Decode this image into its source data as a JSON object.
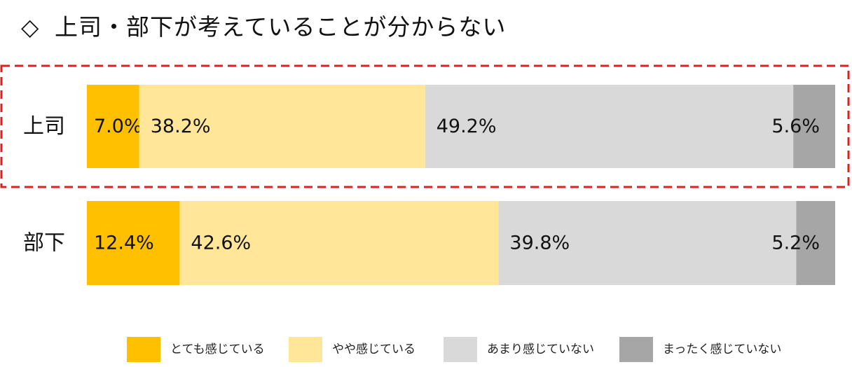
{
  "title": "上司・部下が考えていることが分からない",
  "title_marker": "◇",
  "colors": {
    "very": "#FFC000",
    "somewhat": "#FFE699",
    "little": "#D9D9D9",
    "none": "#A6A6A6",
    "highlight": "#E02020"
  },
  "chart_data": {
    "type": "bar",
    "orientation": "horizontal",
    "stacked": "100%",
    "categories": [
      "上司",
      "部下"
    ],
    "series": [
      {
        "name": "とても感じている",
        "values": [
          7.0,
          12.4
        ],
        "labels": [
          "7.0%",
          "12.4%"
        ],
        "color": "#FFC000"
      },
      {
        "name": "やや感じている",
        "values": [
          38.2,
          42.6
        ],
        "labels": [
          "38.2%",
          "42.6%"
        ],
        "color": "#FFE699"
      },
      {
        "name": "あまり感じていない",
        "values": [
          49.2,
          39.8
        ],
        "labels": [
          "49.2%",
          "39.8%"
        ],
        "color": "#D9D9D9"
      },
      {
        "name": "まったく感じていない",
        "values": [
          5.6,
          5.2
        ],
        "labels": [
          "5.6%",
          "5.2%"
        ],
        "color": "#A6A6A6"
      }
    ],
    "highlighted_category": "上司",
    "legend_position": "bottom",
    "grid": false
  }
}
